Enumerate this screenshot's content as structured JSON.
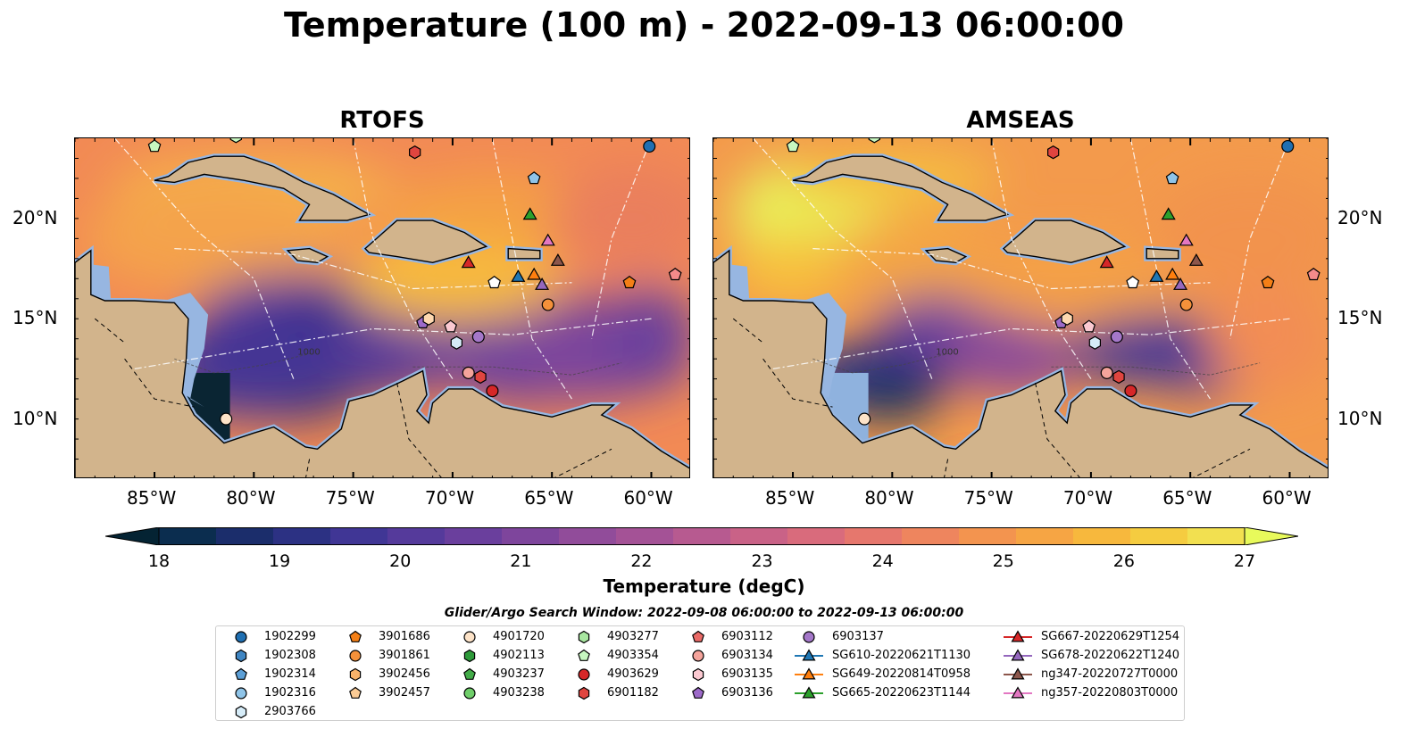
{
  "title": "Temperature (100 m) - 2022-09-13 06:00:00",
  "panels": [
    {
      "title": "RTOFS",
      "theme": "rtofs"
    },
    {
      "title": "AMSEAS",
      "theme": "amseas"
    }
  ],
  "map": {
    "lon_range": [
      -89,
      -58
    ],
    "lat_range": [
      7,
      24
    ],
    "lon_ticks": [
      -85,
      -80,
      -75,
      -70,
      -65,
      -60
    ],
    "lon_tick_labels": [
      "85°W",
      "80°W",
      "75°W",
      "70°W",
      "65°W",
      "60°W"
    ],
    "lat_ticks": [
      10,
      15,
      20
    ],
    "lat_tick_labels": [
      "10°N",
      "15°N",
      "20°N"
    ],
    "bathymetry_label": "1000",
    "land_color": "#d2b48c",
    "shallow_color": "#97b6e1"
  },
  "colorbar": {
    "min": 18,
    "max": 27,
    "ticks": [
      "18",
      "19",
      "20",
      "21",
      "22",
      "23",
      "24",
      "25",
      "26",
      "27"
    ],
    "label": "Temperature (degC)",
    "colors": [
      "#042333",
      "#0b2d4f",
      "#1b2d6b",
      "#2c3183",
      "#403695",
      "#553a9b",
      "#6a3f9d",
      "#7e459c",
      "#914c9a",
      "#a45296",
      "#b75a90",
      "#c96287",
      "#d96b7c",
      "#e6776d",
      "#ee855e",
      "#f3944f",
      "#f6a544",
      "#f7b83d",
      "#f5cc40",
      "#f2e050",
      "#e8fa5b"
    ]
  },
  "search_window": "Glider/Argo Search Window: 2022-09-08 06:00:00 to 2022-09-13 06:00:00",
  "markers": [
    {
      "lon": -85.0,
      "lat": 23.6,
      "shape": "pentagon",
      "color": "#c7f7c0"
    },
    {
      "lon": -80.9,
      "lat": 24.1,
      "shape": "hexagon",
      "color": "#c7f7c0"
    },
    {
      "lon": -60.1,
      "lat": 23.6,
      "shape": "circle",
      "color": "#1f6fb2"
    },
    {
      "lon": -71.9,
      "lat": 23.3,
      "shape": "hexagon",
      "color": "#e0453f"
    },
    {
      "lon": -65.9,
      "lat": 22.0,
      "shape": "pentagon",
      "color": "#8fc4e8"
    },
    {
      "lon": -66.1,
      "lat": 20.2,
      "shape": "triangle",
      "color": "#2ca02c"
    },
    {
      "lon": -65.2,
      "lat": 18.9,
      "shape": "triangle",
      "color": "#e377c2"
    },
    {
      "lon": -64.7,
      "lat": 17.9,
      "shape": "triangle",
      "color": "#8c564b"
    },
    {
      "lon": -69.2,
      "lat": 17.8,
      "shape": "triangle",
      "color": "#d62728"
    },
    {
      "lon": -65.9,
      "lat": 17.2,
      "shape": "triangle",
      "color": "#ff7f0e"
    },
    {
      "lon": -66.7,
      "lat": 17.1,
      "shape": "triangle",
      "color": "#1f77b4"
    },
    {
      "lon": -65.5,
      "lat": 16.7,
      "shape": "triangle",
      "color": "#9467bd"
    },
    {
      "lon": -67.9,
      "lat": 16.8,
      "shape": "pentagon",
      "color": "#ffffff"
    },
    {
      "lon": -61.1,
      "lat": 16.8,
      "shape": "pentagon",
      "color": "#f47f16"
    },
    {
      "lon": -58.8,
      "lat": 17.2,
      "shape": "pentagon",
      "color": "#f38a8a"
    },
    {
      "lon": -65.2,
      "lat": 15.7,
      "shape": "circle",
      "color": "#f4913a"
    },
    {
      "lon": -71.5,
      "lat": 14.8,
      "shape": "pentagon",
      "color": "#9d6ac9"
    },
    {
      "lon": -71.2,
      "lat": 15.0,
      "shape": "hexagon",
      "color": "#fdd8b0"
    },
    {
      "lon": -70.1,
      "lat": 14.6,
      "shape": "pentagon",
      "color": "#fbc9d1"
    },
    {
      "lon": -68.7,
      "lat": 14.1,
      "shape": "circle",
      "color": "#a477c9"
    },
    {
      "lon": -69.8,
      "lat": 13.8,
      "shape": "hexagon",
      "color": "#d6ecf8"
    },
    {
      "lon": -69.2,
      "lat": 12.3,
      "shape": "circle",
      "color": "#f4a39b"
    },
    {
      "lon": -68.6,
      "lat": 12.1,
      "shape": "hexagon",
      "color": "#e0453f"
    },
    {
      "lon": -68.0,
      "lat": 11.4,
      "shape": "circle",
      "color": "#d62728"
    },
    {
      "lon": -81.4,
      "lat": 10.0,
      "shape": "circle",
      "color": "#fde3c8"
    }
  ],
  "legend": [
    [
      {
        "label": "1902299",
        "shape": "circle",
        "color": "#1f6fb2"
      },
      {
        "label": "1902308",
        "shape": "hexagon",
        "color": "#3f85c2"
      },
      {
        "label": "1902314",
        "shape": "pentagon",
        "color": "#5c9fd6"
      },
      {
        "label": "1902316",
        "shape": "circle",
        "color": "#8fc4e8"
      },
      {
        "label": "2903766",
        "shape": "hexagon",
        "color": "#d6ecf8"
      }
    ],
    [
      {
        "label": "3901686",
        "shape": "pentagon",
        "color": "#f47f16"
      },
      {
        "label": "3901861",
        "shape": "circle",
        "color": "#f4913a"
      },
      {
        "label": "3902456",
        "shape": "hexagon",
        "color": "#f8b26a"
      },
      {
        "label": "3902457",
        "shape": "pentagon",
        "color": "#fbcb95"
      }
    ],
    [
      {
        "label": "4901720",
        "shape": "circle",
        "color": "#fde3c8"
      },
      {
        "label": "4902113",
        "shape": "hexagon",
        "color": "#2e9a3a"
      },
      {
        "label": "4903237",
        "shape": "pentagon",
        "color": "#42ab48"
      },
      {
        "label": "4903238",
        "shape": "circle",
        "color": "#6fce6a"
      }
    ],
    [
      {
        "label": "4903277",
        "shape": "hexagon",
        "color": "#a8e6a0"
      },
      {
        "label": "4903354",
        "shape": "pentagon",
        "color": "#c7f7c0"
      },
      {
        "label": "4903629",
        "shape": "circle",
        "color": "#d62728"
      },
      {
        "label": "6901182",
        "shape": "hexagon",
        "color": "#e0453f"
      }
    ],
    [
      {
        "label": "6903112",
        "shape": "pentagon",
        "color": "#ea6a67"
      },
      {
        "label": "6903134",
        "shape": "circle",
        "color": "#f4a39b"
      },
      {
        "label": "6903135",
        "shape": "hexagon",
        "color": "#fbc9d1"
      },
      {
        "label": "6903136",
        "shape": "pentagon",
        "color": "#9d6ac9"
      }
    ],
    [
      {
        "label": "6903137",
        "shape": "circle",
        "color": "#a477c9"
      },
      {
        "label": "SG610-20220621T1130",
        "shape": "triangle-line",
        "color": "#1f77b4"
      },
      {
        "label": "SG649-20220814T0958",
        "shape": "triangle-line",
        "color": "#ff7f0e"
      },
      {
        "label": "SG665-20220623T1144",
        "shape": "triangle-line",
        "color": "#2ca02c"
      }
    ],
    [
      {
        "label": "SG667-20220629T1254",
        "shape": "triangle-line",
        "color": "#d62728"
      },
      {
        "label": "SG678-20220622T1240",
        "shape": "triangle-line",
        "color": "#9467bd"
      },
      {
        "label": "ng347-20220727T0000",
        "shape": "triangle-line",
        "color": "#8c564b"
      },
      {
        "label": "ng357-20220803T0000",
        "shape": "triangle-line",
        "color": "#e377c2"
      }
    ]
  ]
}
